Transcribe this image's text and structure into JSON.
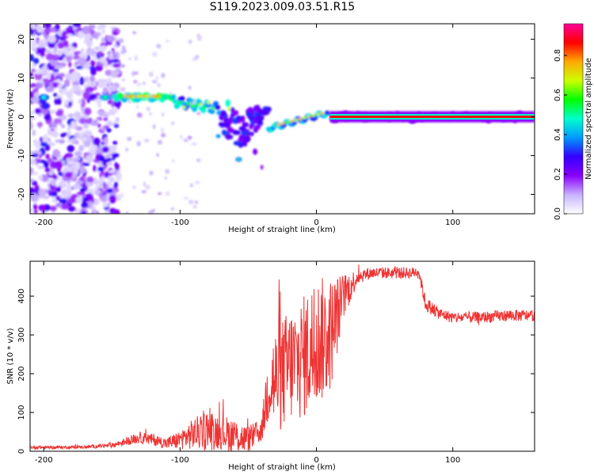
{
  "title": "S119.2023.009.03.51.R15",
  "chart_data": [
    {
      "type": "heatmap",
      "xlabel": "Height of straight line (km)",
      "ylabel": "Frequency (Hz)",
      "xlim": [
        -210,
        160
      ],
      "ylim": [
        -25,
        24
      ],
      "xticks": [
        -200,
        -100,
        0,
        100
      ],
      "yticks": [
        -20,
        -10,
        0,
        10,
        20
      ],
      "colorbar": {
        "label": "Normalized spectral amplitude",
        "range": [
          0.0,
          0.96
        ],
        "ticks": [
          0.0,
          0.2,
          0.4,
          0.6,
          0.8
        ],
        "colors": [
          "#ffffff",
          "#c7b3ff",
          "#8a00ff",
          "#3300ff",
          "#0099ff",
          "#00ffcc",
          "#00ff00",
          "#ccff00",
          "#ffaa00",
          "#ff0000",
          "#ff0099"
        ]
      },
      "features": {
        "noise_region_x": [
          -210,
          -145
        ],
        "tone_start_x": -153,
        "tone_freq_hz_near_minus140": 5,
        "dip_min_freq_hz": -11,
        "dip_x": -57,
        "steady_tone_from_x": 10,
        "steady_tone_freq_hz": 0
      }
    },
    {
      "type": "line",
      "xlabel": "Height of straight line (km)",
      "ylabel": "SNR (10 * v/v)",
      "xlim": [
        -210,
        160
      ],
      "ylim": [
        0,
        490
      ],
      "xticks": [
        -200,
        -100,
        0,
        100
      ],
      "yticks": [
        0,
        100,
        200,
        300,
        400
      ],
      "color": "#ee3333",
      "x": [
        -210,
        -190,
        -170,
        -150,
        -140,
        -130,
        -120,
        -110,
        -100,
        -90,
        -80,
        -70,
        -60,
        -50,
        -40,
        -35,
        -30,
        -20,
        -10,
        0,
        10,
        20,
        30,
        40,
        50,
        60,
        70,
        75,
        80,
        90,
        100,
        120,
        140,
        160
      ],
      "values": [
        10,
        10,
        11,
        15,
        25,
        35,
        30,
        20,
        30,
        45,
        55,
        50,
        40,
        30,
        55,
        180,
        180,
        220,
        240,
        280,
        300,
        400,
        450,
        460,
        460,
        460,
        460,
        465,
        380,
        355,
        345,
        345,
        350,
        350
      ],
      "noise_amplitude": [
        4,
        4,
        4,
        6,
        10,
        15,
        15,
        15,
        25,
        40,
        55,
        45,
        45,
        35,
        30,
        110,
        140,
        150,
        160,
        170,
        150,
        60,
        20,
        15,
        15,
        15,
        15,
        15,
        20,
        15,
        15,
        15,
        15,
        15
      ]
    }
  ]
}
